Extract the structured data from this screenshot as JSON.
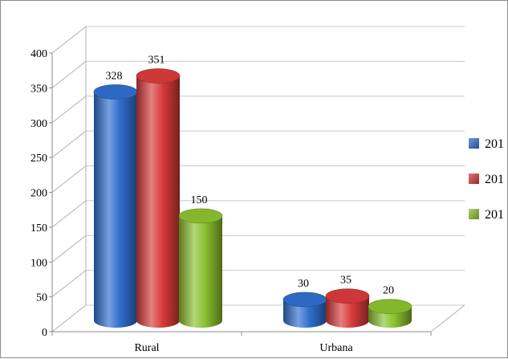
{
  "chart_data": {
    "type": "bar",
    "categories": [
      "Rural",
      "Urbana"
    ],
    "series": [
      {
        "name": "201",
        "color": "#2f6fce",
        "values": [
          328,
          30
        ]
      },
      {
        "name": "201",
        "color": "#d83a3a",
        "values": [
          351,
          35
        ]
      },
      {
        "name": "201",
        "color": "#8cc12f",
        "values": [
          150,
          20
        ]
      }
    ],
    "ylim": [
      0,
      400
    ],
    "yticks": [
      0,
      50,
      100,
      150,
      200,
      250,
      300,
      350,
      400
    ],
    "legend_position": "right",
    "grid": true,
    "style": "3d-cylinder"
  }
}
